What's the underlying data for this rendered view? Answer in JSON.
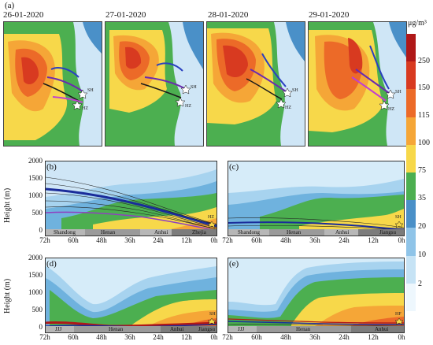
{
  "figure": {
    "panel_a_label": "(a)",
    "map_dates": [
      "26-01-2020",
      "27-01-2020",
      "28-01-2020",
      "29-01-2020"
    ],
    "map_sites": [
      "HZ",
      "SH"
    ],
    "colorbar": {
      "unit": "μg/m³",
      "ticks": [
        "250",
        "150",
        "115",
        "100",
        "75",
        "35",
        "20",
        "10",
        "2"
      ],
      "colors": [
        "#b01818",
        "#d83a20",
        "#ec6a28",
        "#f5a637",
        "#f7d84a",
        "#4caf50",
        "#4a90c8",
        "#8fc4e8",
        "#c6e3f5",
        "#eef7fd"
      ]
    },
    "time_panels": [
      {
        "label": "(b)",
        "site": "HZ",
        "regions": [
          "Shandong",
          "Henan",
          "Anhui",
          "Zhejia"
        ]
      },
      {
        "label": "(c)",
        "site": "SH",
        "regions": [
          "Shandong",
          "Henan",
          "Anhui",
          "Jiangsu"
        ]
      },
      {
        "label": "(d)",
        "site": "SH",
        "regions": [
          "JJJ",
          "Henan",
          "Anhui",
          "Jiangsu"
        ]
      },
      {
        "label": "(e)",
        "site": "HF",
        "regions": [
          "JJJ",
          "Henan",
          "Anhui"
        ]
      }
    ],
    "y_axis": {
      "label": "Height (m)",
      "ticks": [
        "2000",
        "1500",
        "1000",
        "500",
        "0"
      ]
    },
    "x_axis": {
      "ticks": [
        "72h",
        "60h",
        "48h",
        "36h",
        "24h",
        "12h",
        "0h"
      ]
    }
  }
}
